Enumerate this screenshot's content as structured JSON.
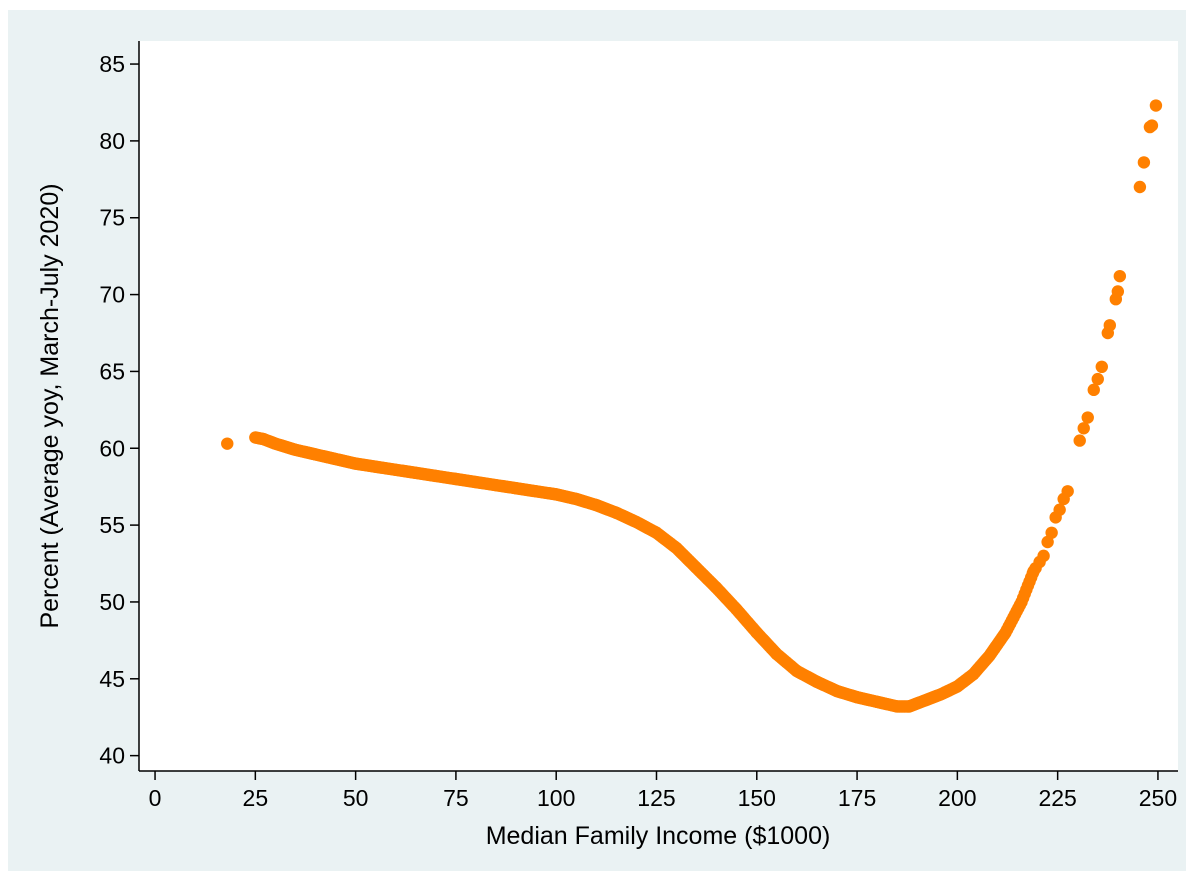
{
  "chart_data": {
    "type": "scatter",
    "title": "",
    "xlabel": "Median Family Income ($1000)",
    "ylabel": "Percent (Average yoy, March-July 2020)",
    "xlim": [
      -4,
      255
    ],
    "ylim": [
      39,
      86.5
    ],
    "x_ticks": [
      0,
      25,
      50,
      75,
      100,
      125,
      150,
      175,
      200,
      225,
      250
    ],
    "y_ticks": [
      40,
      45,
      50,
      55,
      60,
      65,
      70,
      75,
      80,
      85
    ],
    "grid": false,
    "legend": "none",
    "marker_color": "#ff8000",
    "curve": {
      "x": [
        25,
        27,
        30,
        35,
        40,
        45,
        50,
        55,
        60,
        65,
        70,
        75,
        80,
        85,
        90,
        95,
        100,
        105,
        110,
        115,
        120,
        125,
        130,
        135,
        140,
        145,
        150,
        155,
        160,
        165,
        170,
        175,
        180,
        185,
        188,
        192,
        196,
        200,
        204,
        208,
        212,
        216,
        219
      ],
      "y": [
        60.7,
        60.6,
        60.3,
        59.9,
        59.6,
        59.3,
        59.0,
        58.8,
        58.6,
        58.4,
        58.2,
        58.0,
        57.8,
        57.6,
        57.4,
        57.2,
        57.0,
        56.7,
        56.3,
        55.8,
        55.2,
        54.5,
        53.5,
        52.2,
        50.9,
        49.5,
        48.0,
        46.6,
        45.5,
        44.8,
        44.2,
        43.8,
        43.5,
        43.2,
        43.2,
        43.6,
        44.0,
        44.5,
        45.3,
        46.5,
        48.0,
        50.0,
        52.0
      ],
      "step": 0.4
    },
    "points": [
      {
        "x": 18,
        "y": 60.3
      },
      {
        "x": 219.5,
        "y": 52.2
      },
      {
        "x": 220.5,
        "y": 52.6
      },
      {
        "x": 221.5,
        "y": 53.0
      },
      {
        "x": 222.5,
        "y": 53.9
      },
      {
        "x": 223.5,
        "y": 54.5
      },
      {
        "x": 224.5,
        "y": 55.5
      },
      {
        "x": 225.5,
        "y": 56.0
      },
      {
        "x": 226.5,
        "y": 56.7
      },
      {
        "x": 227.5,
        "y": 57.2
      },
      {
        "x": 230.5,
        "y": 60.5
      },
      {
        "x": 231.5,
        "y": 61.3
      },
      {
        "x": 232.5,
        "y": 62.0
      },
      {
        "x": 234,
        "y": 63.8
      },
      {
        "x": 235,
        "y": 64.5
      },
      {
        "x": 236,
        "y": 65.3
      },
      {
        "x": 237.5,
        "y": 67.5
      },
      {
        "x": 238,
        "y": 68.0
      },
      {
        "x": 239.5,
        "y": 69.7
      },
      {
        "x": 240,
        "y": 70.2
      },
      {
        "x": 240.5,
        "y": 71.2
      },
      {
        "x": 245.5,
        "y": 77.0
      },
      {
        "x": 246.5,
        "y": 78.6
      },
      {
        "x": 248,
        "y": 80.9
      },
      {
        "x": 248.5,
        "y": 81.0
      },
      {
        "x": 249.5,
        "y": 82.3
      }
    ]
  }
}
